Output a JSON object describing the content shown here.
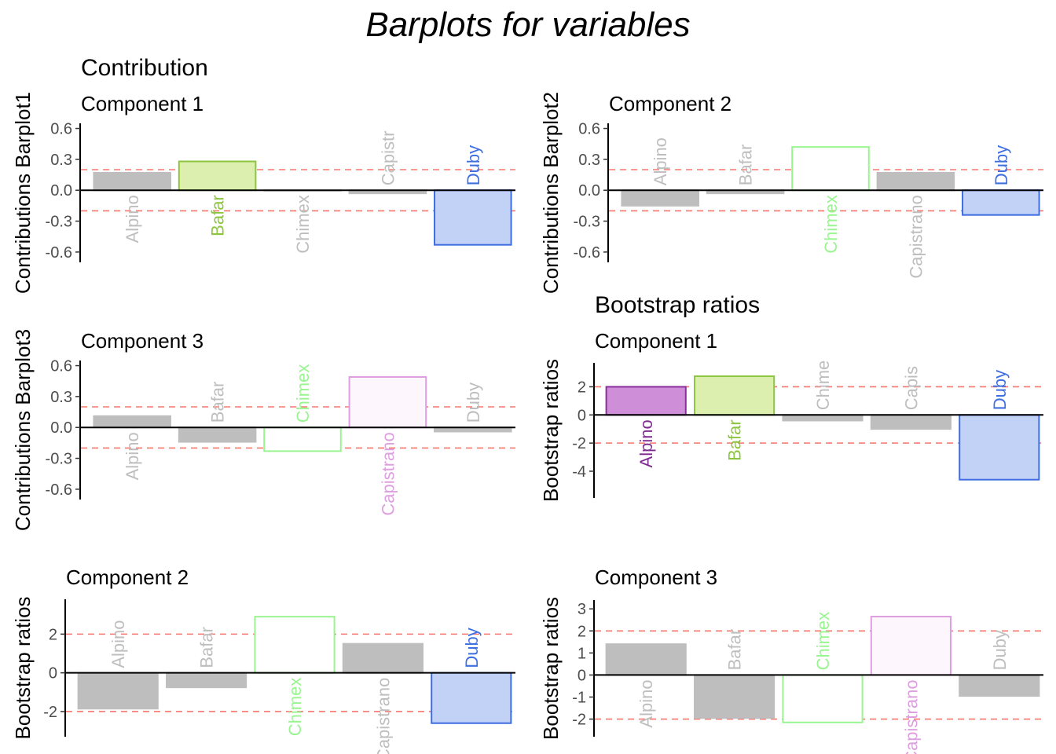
{
  "main_title": "Barplots for variables",
  "section_titles": {
    "contribution": "Contribution",
    "bootstrap": "Bootstrap ratios"
  },
  "threshold_color": "#f8766d",
  "bar_colors": {
    "Alpino": {
      "fill": "#cf8fd8",
      "stroke": "#8a2f9c",
      "label": "#7d2b8f"
    },
    "Bafar": {
      "fill": "#dcefae",
      "stroke": "#8cc63e",
      "label": "#8cc63e"
    },
    "Chimex": {
      "fill": "#ffffff",
      "stroke": "#99f58f",
      "label": "#99f58f"
    },
    "Capistrano": {
      "fill": "#fdf6fc",
      "stroke": "#dd9fdf",
      "label": "#dd9fdf"
    },
    "Duby": {
      "fill": "#c2d2f6",
      "stroke": "#3e6ee0",
      "label": "#3e6ee0"
    },
    "nonsig": {
      "fill": "#bebebe",
      "stroke": "#bebebe",
      "label": "#bebebe"
    }
  },
  "chart_data": [
    {
      "type": "bar",
      "section": "contribution",
      "subtitle": "Component 1",
      "ylabel": "Contributions Barplot1",
      "ylim": [
        -0.7,
        0.65
      ],
      "yticks": [
        -0.6,
        -0.3,
        0.0,
        0.3,
        0.6
      ],
      "ytick_labels": [
        "-0.6",
        "-0.3",
        "0.0",
        "0.3",
        "0.6"
      ],
      "thresholds": [
        0.2,
        -0.2
      ],
      "categories": [
        "Alpino",
        "Bafar",
        "Chimex",
        "Capistr",
        "Duby"
      ],
      "values": [
        0.17,
        0.28,
        0.0,
        -0.03,
        -0.53
      ],
      "significant": [
        false,
        true,
        false,
        false,
        true
      ],
      "color_keys": [
        "Alpino",
        "Bafar",
        "Chimex",
        "Capistrano",
        "Duby"
      ]
    },
    {
      "type": "bar",
      "section": "contribution",
      "subtitle": "Component 2",
      "ylabel": "Contributions Barplot2",
      "ylim": [
        -0.7,
        0.65
      ],
      "yticks": [
        -0.6,
        -0.3,
        0.0,
        0.3,
        0.6
      ],
      "ytick_labels": [
        "-0.6",
        "-0.3",
        "0.0",
        "0.3",
        "0.6"
      ],
      "thresholds": [
        0.2,
        -0.2
      ],
      "categories": [
        "Alpino",
        "Bafar",
        "Chimex",
        "Capistrano",
        "Duby"
      ],
      "values": [
        -0.15,
        -0.03,
        0.42,
        0.17,
        -0.24
      ],
      "significant": [
        false,
        false,
        true,
        false,
        true
      ],
      "color_keys": [
        "Alpino",
        "Bafar",
        "Chimex",
        "Capistrano",
        "Duby"
      ]
    },
    {
      "type": "bar",
      "section": "contribution",
      "subtitle": "Component 3",
      "ylabel": "Contributions Barplot3",
      "ylim": [
        -0.7,
        0.65
      ],
      "yticks": [
        -0.6,
        -0.3,
        0.0,
        0.3,
        0.6
      ],
      "ytick_labels": [
        "-0.6",
        "-0.3",
        "0.0",
        "0.3",
        "0.6"
      ],
      "thresholds": [
        0.2,
        -0.2
      ],
      "categories": [
        "Alpino",
        "Bafar",
        "Chimex",
        "Capistrano",
        "Duby"
      ],
      "values": [
        0.11,
        -0.14,
        -0.23,
        0.49,
        -0.04
      ],
      "significant": [
        false,
        false,
        true,
        true,
        false
      ],
      "color_keys": [
        "Alpino",
        "Bafar",
        "Chimex",
        "Capistrano",
        "Duby"
      ]
    },
    {
      "type": "bar",
      "section": "bootstrap",
      "subtitle": "Component 1",
      "ylabel": "Bootstrap ratios",
      "ylim": [
        -5.9,
        3.7
      ],
      "yticks": [
        -4,
        -2,
        0,
        2
      ],
      "ytick_labels": [
        "-4",
        "-2",
        "0",
        "2"
      ],
      "thresholds": [
        2,
        -2
      ],
      "categories": [
        "Alpino",
        "Bafar",
        "Chime",
        "Capis",
        "Duby"
      ],
      "values": [
        2.0,
        2.75,
        -0.4,
        -1.0,
        -4.6
      ],
      "significant": [
        true,
        true,
        false,
        false,
        true
      ],
      "color_keys": [
        "Alpino",
        "Bafar",
        "Chimex",
        "Capistrano",
        "Duby"
      ]
    },
    {
      "type": "bar",
      "section": "bootstrap",
      "subtitle": "Component 2",
      "ylabel": "Bootstrap ratios",
      "ylim": [
        -3.3,
        3.8
      ],
      "yticks": [
        -2,
        0,
        2
      ],
      "ytick_labels": [
        "-2",
        "0",
        "2"
      ],
      "thresholds": [
        2,
        -2
      ],
      "categories": [
        "Alpino",
        "Bafar",
        "Chimex",
        "Capistrano",
        "Duby"
      ],
      "values": [
        -1.85,
        -0.75,
        2.9,
        1.5,
        -2.6
      ],
      "significant": [
        false,
        false,
        true,
        false,
        true
      ],
      "color_keys": [
        "Alpino",
        "Bafar",
        "Chimex",
        "Capistrano",
        "Duby"
      ]
    },
    {
      "type": "bar",
      "section": "bootstrap",
      "subtitle": "Component 3",
      "ylabel": "Bootstrap ratios",
      "ylim": [
        -2.8,
        3.4
      ],
      "yticks": [
        -2,
        -1,
        0,
        1,
        2,
        3
      ],
      "ytick_labels": [
        "-2",
        "-1",
        "0",
        "1",
        "2",
        "3"
      ],
      "thresholds": [
        2,
        -2
      ],
      "categories": [
        "Alpino",
        "Bafar",
        "Chimex",
        "Capistrano",
        "Duby"
      ],
      "values": [
        1.4,
        -1.95,
        -2.15,
        2.65,
        -0.95
      ],
      "significant": [
        false,
        false,
        true,
        true,
        false
      ],
      "color_keys": [
        "Alpino",
        "Bafar",
        "Chimex",
        "Capistrano",
        "Duby"
      ]
    }
  ]
}
